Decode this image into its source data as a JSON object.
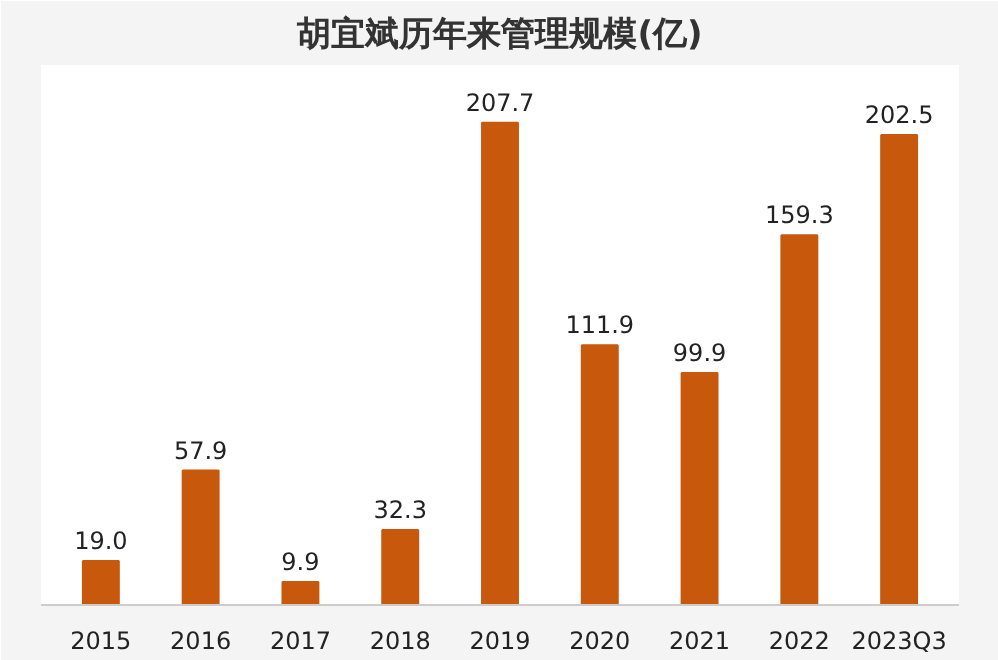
{
  "chart_data": {
    "type": "bar",
    "title": "胡宜斌历年来管理规模(亿)",
    "categories": [
      "2015",
      "2016",
      "2017",
      "2018",
      "2019",
      "2020",
      "2021",
      "2022",
      "2023Q3"
    ],
    "values": [
      19.0,
      57.9,
      9.9,
      32.3,
      207.7,
      111.9,
      99.9,
      159.3,
      202.5
    ],
    "color": "#c8590c",
    "value_labels": [
      "19.0",
      "57.9",
      "9.9",
      "32.3",
      "207.7",
      "111.9",
      "99.9",
      "159.3",
      "202.5"
    ]
  }
}
